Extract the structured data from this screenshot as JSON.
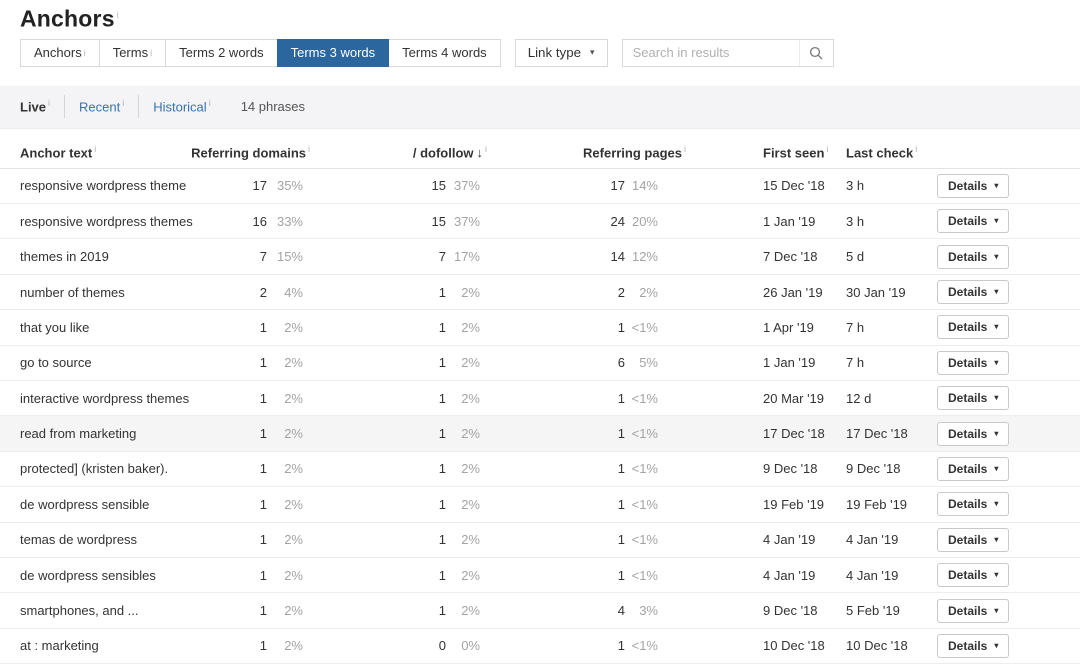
{
  "page": {
    "title": "Anchors"
  },
  "icons": {
    "info": "i",
    "caret_down": "▾",
    "sort_desc": "↓"
  },
  "toolbar": {
    "tabs": [
      {
        "label": "Anchors",
        "info": true,
        "active": false
      },
      {
        "label": "Terms",
        "info": true,
        "active": false
      },
      {
        "label": "Terms 2 words",
        "active": false
      },
      {
        "label": "Terms 3 words",
        "active": true
      },
      {
        "label": "Terms 4 words",
        "active": false
      }
    ],
    "link_type_label": "Link type",
    "search_placeholder": "Search in results"
  },
  "subnav": {
    "items": [
      {
        "label": "Live",
        "info": true,
        "active": true
      },
      {
        "label": "Recent",
        "info": true,
        "active": false
      },
      {
        "label": "Historical",
        "info": true,
        "active": false
      }
    ],
    "phrases_count": "14 phrases"
  },
  "table": {
    "columns": {
      "anchor": "Anchor text",
      "referring_domains": "Referring domains",
      "dofollow": "/ dofollow",
      "referring_pages": "Referring pages",
      "first_seen": "First seen",
      "last_check": "Last check"
    },
    "details_label": "Details",
    "rows": [
      {
        "anchor": "responsive wordpress theme",
        "rd": "17",
        "rd_pct": "35%",
        "rd_bar": 72,
        "df": "15",
        "df_pct": "37%",
        "df_bar": 72,
        "rp": "17",
        "rp_pct": "14%",
        "rp_bar": 62,
        "first_seen": "15 Dec '18",
        "last_check": "3 h"
      },
      {
        "anchor": "responsive wordpress themes",
        "rd": "16",
        "rd_pct": "33%",
        "rd_bar": 68,
        "df": "15",
        "df_pct": "37%",
        "df_bar": 72,
        "rp": "24",
        "rp_pct": "20%",
        "rp_bar": 72,
        "first_seen": "1 Jan '19",
        "last_check": "3 h"
      },
      {
        "anchor": "themes in 2019",
        "rd": "7",
        "rd_pct": "15%",
        "rd_bar": 30,
        "df": "7",
        "df_pct": "17%",
        "df_bar": 32,
        "rp": "14",
        "rp_pct": "12%",
        "rp_bar": 58,
        "first_seen": "7 Dec '18",
        "last_check": "5 d"
      },
      {
        "anchor": "number of themes",
        "rd": "2",
        "rd_pct": "4%",
        "rd_bar": 10,
        "df": "1",
        "df_pct": "2%",
        "df_bar": 7,
        "rp": "2",
        "rp_pct": "2%",
        "rp_bar": 10,
        "first_seen": "26 Jan '19",
        "last_check": "30 Jan '19"
      },
      {
        "anchor": "that you like",
        "rd": "1",
        "rd_pct": "2%",
        "rd_bar": 7,
        "df": "1",
        "df_pct": "2%",
        "df_bar": 7,
        "rp": "1",
        "rp_pct": "<1%",
        "rp_bar": 7,
        "first_seen": "1 Apr '19",
        "last_check": "7 h"
      },
      {
        "anchor": "go to source",
        "rd": "1",
        "rd_pct": "2%",
        "rd_bar": 7,
        "df": "1",
        "df_pct": "2%",
        "df_bar": 7,
        "rp": "6",
        "rp_pct": "5%",
        "rp_bar": 34,
        "first_seen": "1 Jan '19",
        "last_check": "7 h"
      },
      {
        "anchor": "interactive wordpress themes",
        "rd": "1",
        "rd_pct": "2%",
        "rd_bar": 7,
        "df": "1",
        "df_pct": "2%",
        "df_bar": 7,
        "rp": "1",
        "rp_pct": "<1%",
        "rp_bar": 7,
        "first_seen": "20 Mar '19",
        "last_check": "12 d"
      },
      {
        "anchor": "read from marketing",
        "rd": "1",
        "rd_pct": "2%",
        "rd_bar": 7,
        "df": "1",
        "df_pct": "2%",
        "df_bar": 7,
        "rp": "1",
        "rp_pct": "<1%",
        "rp_bar": 7,
        "first_seen": "17 Dec '18",
        "last_check": "17 Dec '18",
        "highlight": true
      },
      {
        "anchor": "protected] (kristen baker).",
        "rd": "1",
        "rd_pct": "2%",
        "rd_bar": 7,
        "df": "1",
        "df_pct": "2%",
        "df_bar": 7,
        "rp": "1",
        "rp_pct": "<1%",
        "rp_bar": 7,
        "first_seen": "9 Dec '18",
        "last_check": "9 Dec '18"
      },
      {
        "anchor": "de wordpress sensible",
        "rd": "1",
        "rd_pct": "2%",
        "rd_bar": 7,
        "df": "1",
        "df_pct": "2%",
        "df_bar": 7,
        "rp": "1",
        "rp_pct": "<1%",
        "rp_bar": 7,
        "first_seen": "19 Feb '19",
        "last_check": "19 Feb '19"
      },
      {
        "anchor": "temas de wordpress",
        "rd": "1",
        "rd_pct": "2%",
        "rd_bar": 7,
        "df": "1",
        "df_pct": "2%",
        "df_bar": 7,
        "rp": "1",
        "rp_pct": "<1%",
        "rp_bar": 7,
        "first_seen": "4 Jan '19",
        "last_check": "4 Jan '19"
      },
      {
        "anchor": "de wordpress sensibles",
        "rd": "1",
        "rd_pct": "2%",
        "rd_bar": 7,
        "df": "1",
        "df_pct": "2%",
        "df_bar": 7,
        "rp": "1",
        "rp_pct": "<1%",
        "rp_bar": 7,
        "first_seen": "4 Jan '19",
        "last_check": "4 Jan '19"
      },
      {
        "anchor": "smartphones, and ...",
        "rd": "1",
        "rd_pct": "2%",
        "rd_bar": 7,
        "df": "1",
        "df_pct": "2%",
        "df_bar": 7,
        "rp": "4",
        "rp_pct": "3%",
        "rp_bar": 26,
        "first_seen": "9 Dec '18",
        "last_check": "5 Feb '19"
      },
      {
        "anchor": "at : marketing",
        "rd": "1",
        "rd_pct": "2%",
        "rd_bar": 7,
        "df": "0",
        "df_pct": "0%",
        "df_bar": 0,
        "rp": "1",
        "rp_pct": "<1%",
        "rp_bar": 7,
        "first_seen": "10 Dec '18",
        "last_check": "10 Dec '18"
      }
    ]
  },
  "colors": {
    "accent_blue": "#2b669f",
    "link_blue": "#3873ae",
    "bar_orange": "#cd7b43",
    "bar_orange_light": "#dda87d"
  }
}
